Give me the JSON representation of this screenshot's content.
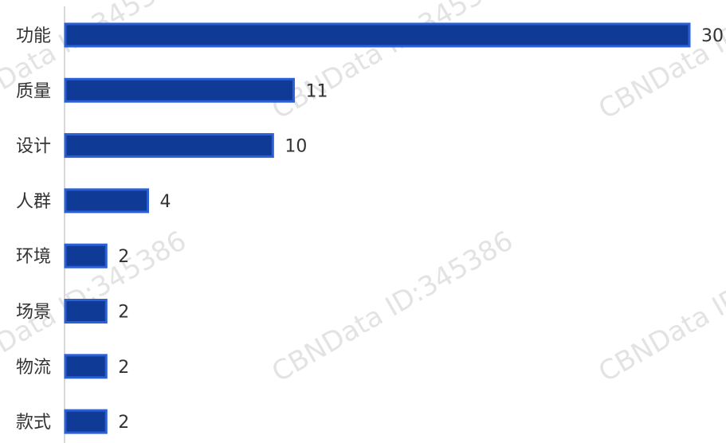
{
  "chart_data": {
    "type": "bar",
    "orientation": "horizontal",
    "categories": [
      "功能",
      "质量",
      "设计",
      "人群",
      "环境",
      "场景",
      "物流",
      "款式"
    ],
    "values": [
      30,
      11,
      10,
      4,
      2,
      2,
      2,
      2
    ],
    "xlim": [
      0,
      30
    ],
    "grid": false,
    "legend": "none",
    "bar_color": "#0f3a96",
    "bar_edge_color": "#2a5fd6"
  },
  "watermark": "CBNData ID:345386"
}
